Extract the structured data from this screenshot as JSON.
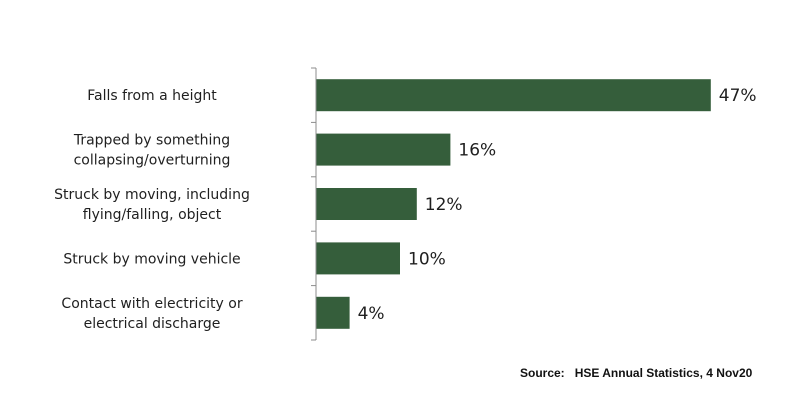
{
  "chart_data": {
    "type": "bar",
    "orientation": "horizontal",
    "categories": [
      [
        "Falls from a height"
      ],
      [
        "Trapped by something",
        "collapsing/overturning"
      ],
      [
        "Struck by moving, including",
        "flying/falling, object"
      ],
      [
        "Struck by moving vehicle"
      ],
      [
        "Contact with electricity or",
        "electrical discharge"
      ]
    ],
    "values": [
      47,
      16,
      12,
      10,
      4
    ],
    "value_labels": [
      "47%",
      "16%",
      "12%",
      "10%",
      "4%"
    ],
    "xlim": [
      0,
      50
    ],
    "grid": false,
    "bar_color": "#355e3b"
  },
  "source": {
    "label": "Source:",
    "text": "HSE Annual Statistics, 4 Nov20"
  }
}
